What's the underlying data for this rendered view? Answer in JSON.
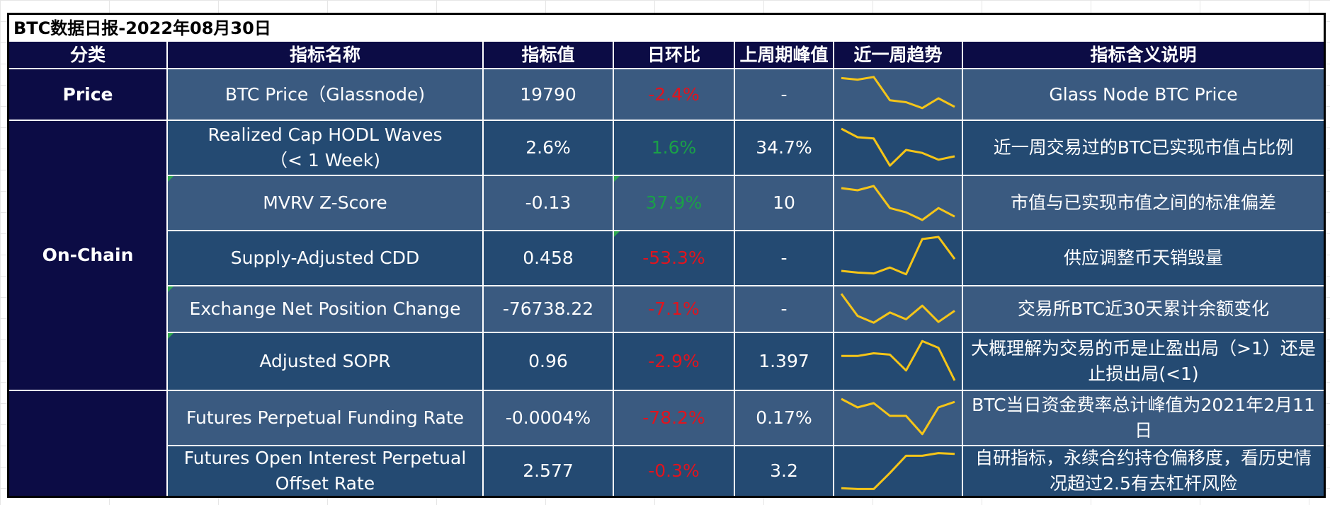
{
  "report": {
    "title": "BTC数据日报-2022年08月30日"
  },
  "headers": {
    "category": "分类",
    "indicator_name": "指标名称",
    "indicator_value": "指标值",
    "daily_change": "日环比",
    "last_week_peak": "上周期峰值",
    "weekly_trend": "近一周趋势",
    "description": "指标含义说明"
  },
  "categories": {
    "price": "Price",
    "onchain": "On-Chain",
    "derivatives": ""
  },
  "rows": [
    {
      "name": "BTC Price（Glassnode)",
      "value": "19790",
      "change": "-2.4%",
      "change_dir": "down",
      "peak": "-",
      "description": "Glass Node BTC Price",
      "trend": [
        0.92,
        0.88,
        0.95,
        0.35,
        0.3,
        0.15,
        0.4,
        0.18
      ]
    },
    {
      "name": "Realized Cap HODL Waves\n（< 1 Week)",
      "value": "2.6%",
      "change": "1.6%",
      "change_dir": "up",
      "peak": "34.7%",
      "description": "近一周交易过的BTC已实现市值占比例",
      "trend": [
        0.95,
        0.75,
        0.72,
        0.08,
        0.45,
        0.38,
        0.22,
        0.3
      ]
    },
    {
      "name": "MVRV Z-Score",
      "value": "-0.13",
      "change": "37.9%",
      "change_dir": "up",
      "peak": "10",
      "description": "市值与已实现市值之间的标准偏差",
      "trend": [
        0.85,
        0.8,
        0.9,
        0.38,
        0.28,
        0.1,
        0.38,
        0.18
      ]
    },
    {
      "name": "Supply-Adjusted CDD",
      "value": "0.458",
      "change": "-53.3%",
      "change_dir": "down",
      "peak": "-",
      "description": "供应调整币天销毁量",
      "trend": [
        0.2,
        0.16,
        0.14,
        0.28,
        0.12,
        0.95,
        1.0,
        0.48
      ]
    },
    {
      "name": "Exchange Net Position Change",
      "value": "-76738.22",
      "change": "-7.1%",
      "change_dir": "down",
      "peak": "-",
      "description": "交易所BTC近30天累计余额变化",
      "trend": [
        0.95,
        0.3,
        0.1,
        0.4,
        0.2,
        0.6,
        0.12,
        0.45
      ]
    },
    {
      "name": "Adjusted SOPR",
      "value": "0.96",
      "change": "-2.9%",
      "change_dir": "down",
      "peak": "1.397",
      "description": "大概理解为交易的币是止盈出局（>1）还是止损出局(<1)",
      "trend": [
        0.62,
        0.62,
        0.68,
        0.65,
        0.3,
        0.95,
        0.8,
        0.08
      ]
    },
    {
      "name": "Futures Perpetual Funding Rate",
      "value": "-0.0004%",
      "change": "-78.2%",
      "change_dir": "down",
      "peak": "0.17%",
      "description": "BTC当日资金费率总计峰值为2021年2月11日",
      "trend": [
        0.95,
        0.75,
        0.85,
        0.55,
        0.55,
        0.12,
        0.75,
        0.88
      ]
    },
    {
      "name": "Futures Open Interest Perpetual\nOffset Rate",
      "value": "2.577",
      "change": "-0.3%",
      "change_dir": "down",
      "peak": "3.2",
      "description": "自研指标，永续合约持仓偏移度，看历史情况超过2.5有去杠杆风险",
      "trend": [
        0.05,
        0.03,
        0.03,
        0.45,
        0.9,
        0.9,
        0.97,
        0.95
      ]
    }
  ],
  "colors": {
    "header_bg": "#0c0c45",
    "cell_light": "#3a5a80",
    "cell_dark": "#244a72",
    "spark_line": "#f5c518",
    "negative": "#e0141e",
    "positive": "#1aa048"
  }
}
